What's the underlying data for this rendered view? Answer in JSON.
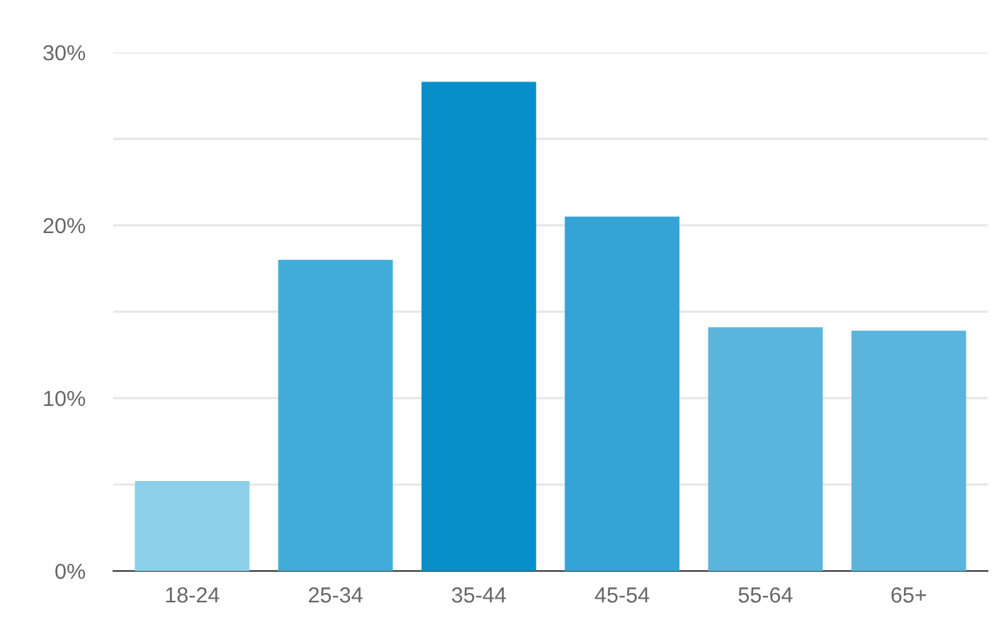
{
  "chart_data": {
    "type": "bar",
    "categories": [
      "18-24",
      "25-34",
      "35-44",
      "45-54",
      "55-64",
      "65+"
    ],
    "values": [
      5.2,
      18.0,
      28.3,
      20.5,
      14.1,
      13.9
    ],
    "colors": [
      "#8dd0ea",
      "#42acd9",
      "#078fc9",
      "#34a3d5",
      "#5ab4dc",
      "#5ab4dc"
    ],
    "ylim": [
      0,
      30
    ],
    "yticks": [
      {
        "value": 0,
        "label": "0%"
      },
      {
        "value": 5,
        "label": null
      },
      {
        "value": 10,
        "label": "10%"
      },
      {
        "value": 15,
        "label": null
      },
      {
        "value": 20,
        "label": "20%"
      },
      {
        "value": 25,
        "label": null
      },
      {
        "value": 30,
        "label": "30%"
      }
    ],
    "grid": "y"
  }
}
